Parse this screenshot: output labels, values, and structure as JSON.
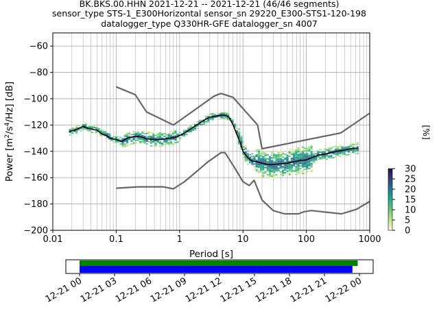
{
  "title_lines": [
    "BK.BKS.00.HHN   2021-12-21 -- 2021-12-21  (46/46 segments)",
    "sensor_type STS-1_E300Horizontal sensor_sn 29220_E300-STS1-120-198",
    "datalogger_type Q330HR-GFE datalogger_sn 4007"
  ],
  "chart_data": {
    "type": "line",
    "title": "BK.BKS.00.HHN   2021-12-21 -- 2021-12-21  (46/46 segments)",
    "xlabel": "Period [s]",
    "ylabel": "Power [m²/s⁴/Hz] [dB]",
    "xscale": "log",
    "xlim": [
      0.01,
      1000
    ],
    "ylim": [
      -200,
      -50
    ],
    "x_ticks": [
      "0.01",
      "0.1",
      "1",
      "10",
      "100",
      "1000"
    ],
    "y_ticks": [
      "−200",
      "−180",
      "−160",
      "−140",
      "−120",
      "−100",
      "−80",
      "−60"
    ],
    "grid": true,
    "series": [
      {
        "name": "",
        "color": "#666666",
        "x": [
          0.1,
          0.2,
          0.3,
          0.8,
          3.5,
          4.5,
          7,
          17,
          20,
          350,
          1000
        ],
        "y": [
          -91,
          -97,
          -110,
          -120,
          -98,
          -96,
          -99,
          -120,
          -138,
          -126,
          -111
        ]
      },
      {
        "name": "",
        "color": "#666666",
        "x": [
          0.1,
          0.22,
          0.55,
          0.8,
          1.2,
          2.8,
          4.5,
          5.2,
          7.5,
          10,
          12.5,
          15,
          20,
          30,
          45,
          75,
          90,
          120,
          360,
          620,
          1000
        ],
        "y": [
          -168,
          -167,
          -167,
          -168.5,
          -163,
          -148,
          -141,
          -141,
          -153,
          -163,
          -166,
          -162,
          -177,
          -185,
          -187.5,
          -187.5,
          -186,
          -185,
          -187.5,
          -184,
          -178
        ]
      },
      {
        "name": "",
        "color": "#000000",
        "x": [
          0.018,
          0.022,
          0.027,
          0.03,
          0.035,
          0.04,
          0.05,
          0.06,
          0.07,
          0.08,
          0.1,
          0.12,
          0.15,
          0.2,
          0.25,
          0.3,
          0.4,
          0.5,
          0.7,
          0.9,
          1.1,
          1.3,
          1.6,
          2,
          2.5,
          3,
          3.5,
          4,
          4.5,
          5,
          5.5,
          6,
          7,
          8,
          9,
          10,
          12,
          14,
          17,
          20,
          25,
          30,
          40,
          50,
          60,
          80,
          100,
          120,
          150,
          200,
          300,
          400,
          500,
          650
        ],
        "y": [
          -125,
          -124,
          -122,
          -121,
          -122.5,
          -123,
          -124,
          -127,
          -128,
          -130,
          -131,
          -132.5,
          -130,
          -128.5,
          -129,
          -130.5,
          -131,
          -131,
          -130,
          -129,
          -127,
          -125,
          -122,
          -119,
          -116,
          -114,
          -113.5,
          -113,
          -112.5,
          -112.5,
          -113,
          -114,
          -120,
          -127,
          -133,
          -140,
          -145,
          -147.5,
          -148,
          -149,
          -150,
          -150,
          -149.5,
          -149,
          -148,
          -147,
          -146.5,
          -145,
          -143,
          -142,
          -140,
          -139,
          -138,
          -137.5
        ]
      }
    ],
    "colorbar": {
      "label": "[%]",
      "ticks": [
        "0",
        "5",
        "10",
        "15",
        "20",
        "25",
        "30"
      ],
      "range": [
        0,
        30
      ]
    },
    "timeline": {
      "ticks": [
        "12-21 00",
        "12-21 03",
        "12-21 06",
        "12-21 09",
        "12-21 12",
        "12-21 15",
        "12-21 18",
        "12-21 21",
        "12-22 00"
      ],
      "green_bar": [
        0.0,
        23.85
      ],
      "blue_bar": [
        0.0,
        23.4
      ]
    }
  }
}
